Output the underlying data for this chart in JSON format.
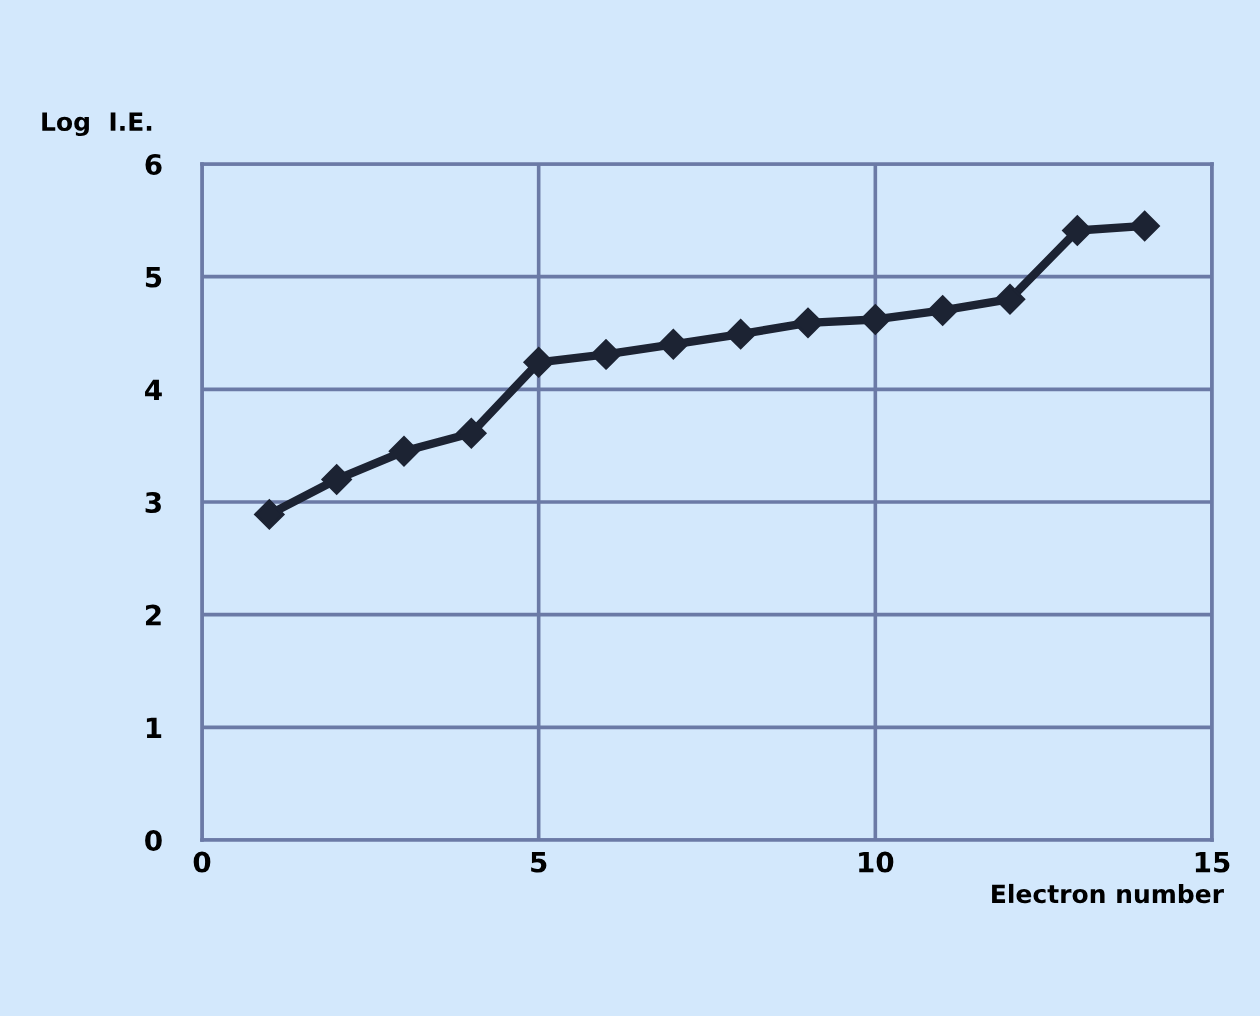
{
  "chart_data": {
    "type": "line",
    "ylabel": "Log  I.E.",
    "xlabel": "Electron number",
    "x": [
      1,
      2,
      3,
      4,
      5,
      6,
      7,
      8,
      9,
      10,
      11,
      12,
      13,
      14
    ],
    "values": [
      2.89,
      3.2,
      3.45,
      3.61,
      4.24,
      4.31,
      4.4,
      4.49,
      4.59,
      4.62,
      4.7,
      4.8,
      5.41,
      5.45
    ],
    "color": "#1c2333",
    "marker": "diamond",
    "line_style": "solid",
    "xlim": [
      0,
      15
    ],
    "xticks": [
      0,
      5,
      10,
      15
    ],
    "ylim": [
      0,
      6
    ],
    "yticks": [
      0,
      1,
      2,
      3,
      4,
      5,
      6
    ],
    "grid": true
  }
}
